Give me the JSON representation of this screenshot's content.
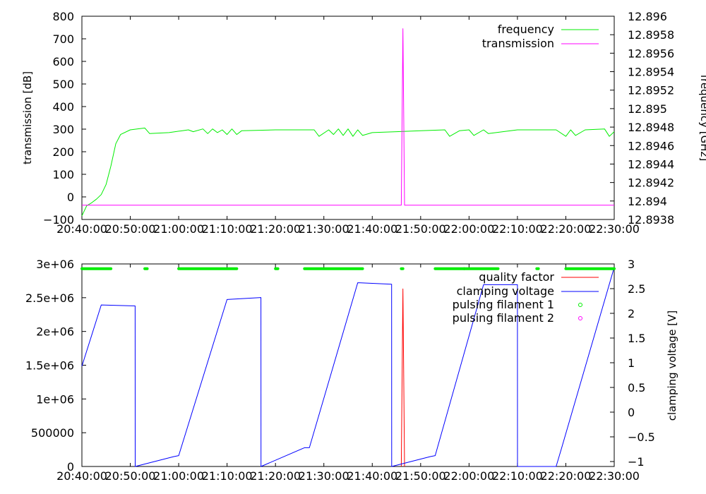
{
  "chart_data": [
    {
      "type": "line",
      "xlabel": "",
      "ylabel": "transmission [dB]",
      "y2label": "frequency [GHz]",
      "xlim": [
        "20:40:00",
        "22:30:00"
      ],
      "ylim": [
        -100,
        800
      ],
      "y2lim": [
        12.8938,
        12.896
      ],
      "x_ticks": [
        "20:40:00",
        "20:50:00",
        "21:00:00",
        "21:10:00",
        "21:20:00",
        "21:30:00",
        "21:40:00",
        "21:50:00",
        "22:00:00",
        "22:10:00",
        "22:20:00",
        "22:30:00"
      ],
      "y_ticks": [
        "800",
        "700",
        "600",
        "500",
        "400",
        "300",
        "200",
        "100",
        "0",
        "−100"
      ],
      "y2_ticks": [
        "12.896",
        "12.8958",
        "12.8956",
        "12.8954",
        "12.8952",
        "12.895",
        "12.8948",
        "12.8946",
        "12.8944",
        "12.8942",
        "12.894",
        "12.8938"
      ],
      "legend_position": "top-right",
      "series": [
        {
          "name": "frequency",
          "axis": "right",
          "color": "#00ee00",
          "x": [
            "20:40:00",
            "20:41:00",
            "20:42:00",
            "20:43:00",
            "20:44:00",
            "20:45:00",
            "20:46:00",
            "20:47:00",
            "20:48:00",
            "20:50:00",
            "20:53:00",
            "20:54:00",
            "20:58:00",
            "21:02:00",
            "21:03:00",
            "21:05:00",
            "21:06:00",
            "21:07:00",
            "21:08:00",
            "21:09:00",
            "21:10:00",
            "21:11:00",
            "21:12:00",
            "21:13:00",
            "21:20:00",
            "21:28:00",
            "21:29:00",
            "21:31:00",
            "21:32:00",
            "21:33:00",
            "21:34:00",
            "21:35:00",
            "21:36:00",
            "21:37:00",
            "21:38:00",
            "21:40:00",
            "21:45:00",
            "21:50:00",
            "21:55:00",
            "21:56:00",
            "21:58:00",
            "22:00:00",
            "22:01:00",
            "22:03:00",
            "22:04:00",
            "22:10:00",
            "22:18:00",
            "22:20:00",
            "22:21:00",
            "22:22:00",
            "22:24:00",
            "22:28:00",
            "22:29:00",
            "22:30:00"
          ],
          "values": [
            12.89384,
            12.89395,
            12.89398,
            12.89402,
            12.89407,
            12.89418,
            12.89438,
            12.89462,
            12.89472,
            12.89477,
            12.89479,
            12.89473,
            12.89474,
            12.89477,
            12.89475,
            12.89478,
            12.89473,
            12.89478,
            12.89474,
            12.89477,
            12.89472,
            12.89478,
            12.89472,
            12.89476,
            12.89477,
            12.89477,
            12.8947,
            12.89477,
            12.89472,
            12.89478,
            12.89471,
            12.89478,
            12.8947,
            12.89477,
            12.89471,
            12.89474,
            12.89475,
            12.89476,
            12.89477,
            12.8947,
            12.89476,
            12.89477,
            12.89471,
            12.89477,
            12.89473,
            12.89477,
            12.89477,
            12.8947,
            12.89477,
            12.89471,
            12.89477,
            12.89478,
            12.8947,
            12.89475
          ]
        },
        {
          "name": "transmission",
          "axis": "left",
          "color": "#ff00ff",
          "x": [
            "20:40:00",
            "21:46:00",
            "21:46:20",
            "21:46:40",
            "21:47:00",
            "22:30:00"
          ],
          "values": [
            -37,
            -37,
            745,
            -37,
            -37,
            -37
          ]
        }
      ]
    },
    {
      "type": "line",
      "xlabel": "",
      "ylabel": "",
      "y2label": "clamping voltage [V]",
      "xlim": [
        "20:40:00",
        "22:30:00"
      ],
      "ylim": [
        0,
        3000000
      ],
      "y2lim": [
        -1.1,
        3
      ],
      "x_ticks": [
        "20:40:00",
        "20:50:00",
        "21:00:00",
        "21:10:00",
        "21:20:00",
        "21:30:00",
        "21:40:00",
        "21:50:00",
        "22:00:00",
        "22:10:00",
        "22:20:00",
        "22:30:00"
      ],
      "y_ticks": [
        "3e+06",
        "2.5e+06",
        "2e+06",
        "1.5e+06",
        "1e+06",
        "500000",
        "0"
      ],
      "y2_ticks": [
        "3",
        "2.5",
        "2",
        "1.5",
        "1",
        "0.5",
        "0",
        "−0.5",
        "−1"
      ],
      "legend_position": "top-right",
      "series": [
        {
          "name": "quality factor",
          "axis": "left",
          "color": "#ff0000",
          "x": [
            "21:46:00",
            "21:46:20",
            "21:46:40"
          ],
          "values": [
            0,
            2630000,
            0
          ]
        },
        {
          "name": "clamping voltage",
          "axis": "right",
          "color": "#0000ff",
          "x": [
            "20:40:00",
            "20:44:00",
            "20:51:00",
            "20:51:01",
            "20:59:00",
            "21:00:00",
            "21:10:00",
            "21:17:00",
            "21:17:01",
            "21:26:00",
            "21:27:00",
            "21:37:00",
            "21:44:00",
            "21:44:01",
            "21:52:00",
            "21:53:00",
            "22:03:00",
            "22:10:00",
            "22:10:01",
            "22:18:00",
            "22:19:00",
            "22:30:00"
          ],
          "values": [
            0.93,
            2.17,
            2.15,
            -1.1,
            -0.9,
            -0.88,
            2.28,
            2.32,
            -1.1,
            -0.72,
            -0.72,
            2.62,
            2.59,
            -1.1,
            -0.9,
            -0.88,
            2.58,
            2.58,
            -1.1,
            -1.1,
            -0.77,
            2.93
          ]
        },
        {
          "name": "pulsing filament 1",
          "axis": "left",
          "color": "#00ee00",
          "y_level": 2930000,
          "segments": [
            [
              "20:40:00",
              "20:46:00"
            ],
            [
              "20:53:00",
              "20:53:30"
            ],
            [
              "21:00:00",
              "21:12:00"
            ],
            [
              "21:20:00",
              "21:20:30"
            ],
            [
              "21:26:00",
              "21:38:00"
            ],
            [
              "21:46:00",
              "21:46:20"
            ],
            [
              "21:53:00",
              "21:59:00"
            ],
            [
              "21:59:00",
              "22:06:00"
            ],
            [
              "22:14:00",
              "22:14:20"
            ],
            [
              "22:20:00",
              "22:30:00"
            ]
          ]
        },
        {
          "name": "pulsing filament 2",
          "axis": "left",
          "color": "#ff00ff",
          "segments": []
        }
      ]
    }
  ]
}
